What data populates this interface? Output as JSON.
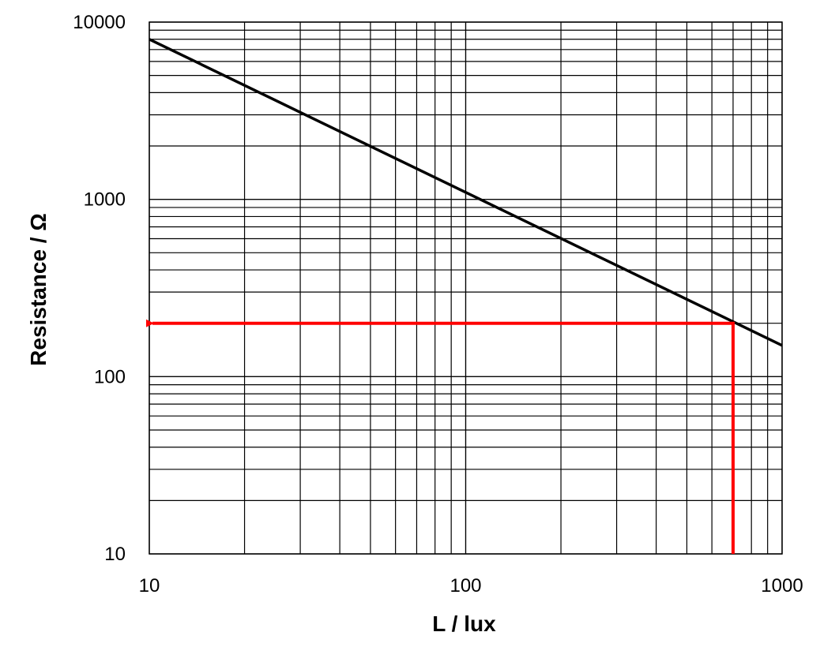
{
  "chart_data": {
    "type": "line",
    "xlabel": "L / lux",
    "ylabel": "Resistance / Ω",
    "x_scale": "log",
    "y_scale": "log",
    "xlim": [
      10,
      1000
    ],
    "ylim": [
      10,
      10000
    ],
    "x_ticks": [
      "10",
      "100",
      "1000"
    ],
    "y_ticks": [
      "10",
      "100",
      "1000",
      "10000"
    ],
    "grid": true,
    "series": [
      {
        "color": "#000000",
        "x": [
          10,
          1000
        ],
        "y": [
          8000,
          150
        ]
      }
    ],
    "annotations": [
      {
        "type": "reading-arrow",
        "color": "#ff0000",
        "x": 700,
        "y": 200,
        "description_path": "vertical from x-axis at L=700 up to line, then horizontal arrow to y-axis at 200"
      }
    ]
  }
}
